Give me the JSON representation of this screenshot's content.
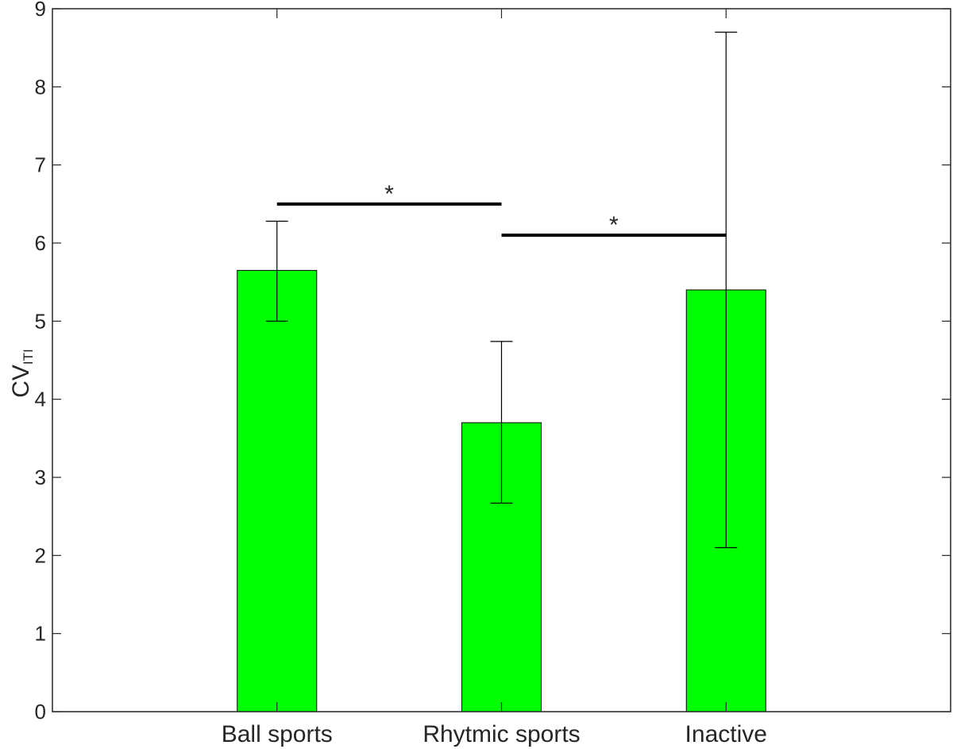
{
  "chart_data": {
    "type": "bar",
    "categories": [
      "Ball sports",
      "Rhytmic sports",
      "Inactive"
    ],
    "values": [
      5.65,
      3.7,
      5.4
    ],
    "error_low": [
      5.0,
      2.67,
      2.1
    ],
    "error_high": [
      6.28,
      4.74,
      8.7
    ],
    "bar_color": "#00ff00",
    "bar_edge_color": "#000000",
    "ylabel_main": "CV",
    "ylabel_sub": "ITI",
    "ylim": [
      0,
      9
    ],
    "yticks": [
      "0",
      "1",
      "2",
      "3",
      "4",
      "5",
      "6",
      "7",
      "8",
      "9"
    ],
    "grid": false,
    "significance": [
      {
        "from": 0,
        "to": 1,
        "y": 6.5,
        "label": "*"
      },
      {
        "from": 1,
        "to": 2,
        "y": 6.1,
        "label": "*"
      }
    ]
  }
}
